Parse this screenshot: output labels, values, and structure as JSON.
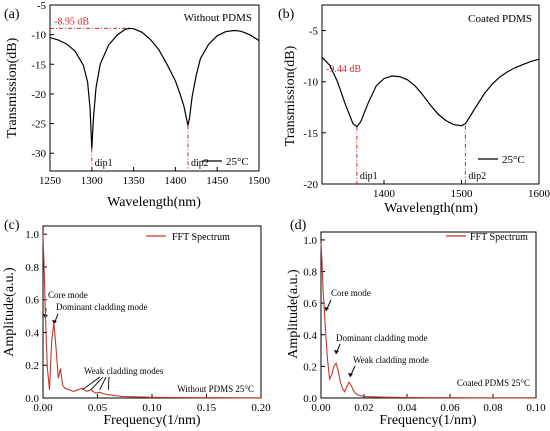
{
  "colors": {
    "axis": "#000000",
    "spectrum": "#000000",
    "fft": "#c0392b",
    "annotation": "#d9262b",
    "arrow": "#000000"
  },
  "chart_data": [
    {
      "panel": "(a)",
      "type": "line",
      "title": "Without PDMS",
      "xlabel": "Wavelength(nm)",
      "ylabel": "Transmission(dB)",
      "xlim": [
        1250,
        1500
      ],
      "ylim": [
        -33,
        -5
      ],
      "xticks": [
        1250,
        1300,
        1350,
        1400,
        1450,
        1500
      ],
      "yticks": [
        -30,
        -25,
        -20,
        -15,
        -10,
        -5
      ],
      "legend": {
        "label": "25°C",
        "position": "bottom-right"
      },
      "series": [
        {
          "name": "25°C",
          "x": [
            1250,
            1260,
            1270,
            1280,
            1290,
            1295,
            1298,
            1300,
            1302,
            1305,
            1310,
            1320,
            1330,
            1340,
            1345,
            1350,
            1360,
            1370,
            1380,
            1390,
            1400,
            1405,
            1410,
            1413,
            1415,
            1417,
            1420,
            1425,
            1430,
            1440,
            1450,
            1460,
            1470,
            1475,
            1480,
            1490,
            1500
          ],
          "y": [
            -10.5,
            -10.9,
            -11.6,
            -12.8,
            -15.2,
            -18.0,
            -22.5,
            -29.2,
            -24.0,
            -19.0,
            -15.0,
            -11.8,
            -10.1,
            -9.1,
            -8.95,
            -9.0,
            -9.6,
            -10.8,
            -12.5,
            -15.0,
            -17.8,
            -19.8,
            -22.0,
            -24.0,
            -25.3,
            -24.0,
            -20.5,
            -16.8,
            -14.0,
            -11.6,
            -10.2,
            -9.5,
            -9.3,
            -9.35,
            -9.5,
            -10.1,
            -11.0
          ]
        }
      ],
      "annotations": [
        {
          "text": "-8.95 dB",
          "x": 1250,
          "y": -8.95
        },
        {
          "text": "dip1",
          "x": 1300,
          "y": -29.2
        },
        {
          "text": "dip2",
          "x": 1415,
          "y": -25.3
        }
      ]
    },
    {
      "panel": "(b)",
      "type": "line",
      "title": "Coated PDMS",
      "xlabel": "Wavelength(nm)",
      "ylabel": "Transmission(dB)",
      "xlim": [
        1320,
        1600
      ],
      "ylim": [
        -20,
        -2.5
      ],
      "xticks": [
        1400,
        1500,
        1600
      ],
      "ytick_labels": [
        "-5",
        "-10",
        "-15",
        "-20"
      ],
      "yticks": [
        -5,
        -10,
        -15,
        -20
      ],
      "legend": {
        "label": "25°C",
        "position": "bottom-right"
      },
      "series": [
        {
          "name": "25°C",
          "x": [
            1320,
            1330,
            1340,
            1350,
            1360,
            1365,
            1370,
            1380,
            1390,
            1400,
            1410,
            1420,
            1430,
            1440,
            1450,
            1460,
            1470,
            1480,
            1490,
            1500,
            1505,
            1510,
            1520,
            1530,
            1540,
            1550,
            1560,
            1570,
            1580,
            1590,
            1600
          ],
          "y": [
            -7.6,
            -8.4,
            -10.0,
            -12.2,
            -14.1,
            -14.4,
            -13.9,
            -12.0,
            -10.4,
            -9.7,
            -9.44,
            -9.5,
            -9.8,
            -10.4,
            -11.3,
            -12.3,
            -13.2,
            -13.8,
            -14.2,
            -14.3,
            -14.1,
            -13.5,
            -12.3,
            -11.1,
            -10.2,
            -9.5,
            -9.0,
            -8.6,
            -8.3,
            -8.0,
            -7.8
          ]
        }
      ],
      "annotations": [
        {
          "text": "-9.44 dB",
          "x": 1320,
          "y": -9.44
        },
        {
          "text": "dip1",
          "x": 1365,
          "y": -14.4
        },
        {
          "text": "dip2",
          "x": 1505,
          "y": -14.3
        }
      ]
    },
    {
      "panel": "(c)",
      "type": "line",
      "title": "",
      "xlabel": "Frequency(1/nm)",
      "ylabel": "Amplitude(a.u.)",
      "xlim": [
        0,
        0.2
      ],
      "ylim": [
        0,
        1.05
      ],
      "xticks": [
        0.0,
        0.05,
        0.1,
        0.15,
        0.2
      ],
      "xtick_labels": [
        "0.00",
        "0.05",
        "0.10",
        "0.15",
        "0.20"
      ],
      "yticks": [
        0.0,
        0.2,
        0.4,
        0.6,
        0.8,
        1.0
      ],
      "ytick_labels": [
        "0.0",
        "0.2",
        "0.4",
        "0.6",
        "0.8",
        "1.0"
      ],
      "legend": {
        "label": "FFT Spectrum",
        "position": "top-right"
      },
      "series": [
        {
          "name": "FFT Spectrum",
          "x": [
            0,
            0.001,
            0.002,
            0.003,
            0.004,
            0.006,
            0.008,
            0.01,
            0.012,
            0.014,
            0.016,
            0.018,
            0.02,
            0.024,
            0.028,
            0.032,
            0.036,
            0.04,
            0.044,
            0.048,
            0.052,
            0.056,
            0.06,
            0.066,
            0.072,
            0.08,
            0.09,
            0.1,
            0.12,
            0.14,
            0.16,
            0.18,
            0.2
          ],
          "y": [
            1.0,
            0.8,
            0.55,
            0.35,
            0.18,
            0.05,
            0.35,
            0.46,
            0.3,
            0.12,
            0.18,
            0.08,
            0.06,
            0.05,
            0.04,
            0.05,
            0.06,
            0.04,
            0.05,
            0.03,
            0.035,
            0.025,
            0.02,
            0.015,
            0.01,
            0.008,
            0.006,
            0.004,
            0.003,
            0.002,
            0.002,
            0.001,
            0.001
          ]
        }
      ],
      "annotations": [
        {
          "text": "Core mode",
          "x": 0.0,
          "y": 0.62
        },
        {
          "text": "Dominant cladding mode",
          "x": 0.01,
          "y": 0.46
        },
        {
          "text": "Weak cladding modes",
          "x": 0.04,
          "y": 0.06
        },
        {
          "text": "Without PDMS 25°C",
          "x": 0.2,
          "y": 0.0
        }
      ]
    },
    {
      "panel": "(d)",
      "type": "line",
      "title": "",
      "xlabel": "Frequency(1/nm)",
      "ylabel": "Amplitude(a.u.)",
      "xlim": [
        0,
        0.1
      ],
      "ylim": [
        0,
        1.05
      ],
      "xticks": [
        0.0,
        0.02,
        0.04,
        0.06,
        0.08,
        0.1
      ],
      "xtick_labels": [
        "0.00",
        "0.02",
        "0.04",
        "0.06",
        "0.08",
        "0.10"
      ],
      "yticks": [
        0.0,
        0.2,
        0.4,
        0.6,
        0.8,
        1.0
      ],
      "ytick_labels": [
        "0.0",
        "0.2",
        "0.4",
        "0.6",
        "0.8",
        "1.0"
      ],
      "legend": {
        "label": "FFT Spectrum",
        "position": "top-right"
      },
      "series": [
        {
          "name": "FFT Spectrum",
          "x": [
            0,
            0.0005,
            0.001,
            0.002,
            0.003,
            0.004,
            0.005,
            0.006,
            0.007,
            0.008,
            0.009,
            0.01,
            0.011,
            0.012,
            0.013,
            0.014,
            0.015,
            0.016,
            0.017,
            0.018,
            0.02,
            0.025,
            0.03,
            0.04,
            0.05,
            0.06,
            0.07,
            0.08,
            0.09,
            0.1
          ],
          "y": [
            0.98,
            0.85,
            0.68,
            0.45,
            0.25,
            0.12,
            0.15,
            0.2,
            0.22,
            0.17,
            0.1,
            0.06,
            0.04,
            0.07,
            0.1,
            0.08,
            0.05,
            0.03,
            0.02,
            0.015,
            0.01,
            0.007,
            0.005,
            0.003,
            0.002,
            0.002,
            0.001,
            0.001,
            0.001,
            0.001
          ]
        }
      ],
      "annotations": [
        {
          "text": "Core mode",
          "x": 0.002,
          "y": 0.45
        },
        {
          "text": "Dominant cladding mode",
          "x": 0.007,
          "y": 0.22
        },
        {
          "text": "Weak cladding mode",
          "x": 0.013,
          "y": 0.1
        },
        {
          "text": "Coated PDMS 25°C",
          "x": 0.1,
          "y": 0.0
        }
      ]
    }
  ]
}
